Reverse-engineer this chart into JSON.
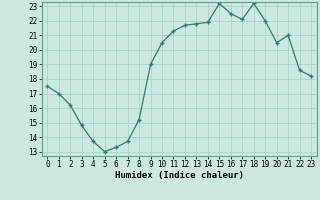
{
  "x": [
    0,
    1,
    2,
    3,
    4,
    5,
    6,
    7,
    8,
    9,
    10,
    11,
    12,
    13,
    14,
    15,
    16,
    17,
    18,
    19,
    20,
    21,
    22,
    23
  ],
  "y": [
    17.5,
    17.0,
    16.2,
    14.8,
    13.7,
    13.0,
    13.3,
    13.7,
    15.2,
    19.0,
    20.5,
    21.3,
    21.7,
    21.8,
    21.9,
    23.2,
    22.5,
    22.1,
    23.2,
    22.0,
    20.5,
    21.0,
    18.6,
    18.2
  ],
  "xlabel": "Humidex (Indice chaleur)",
  "ylim_min": 12.7,
  "ylim_max": 23.3,
  "xlim_min": -0.5,
  "xlim_max": 23.5,
  "yticks": [
    13,
    14,
    15,
    16,
    17,
    18,
    19,
    20,
    21,
    22,
    23
  ],
  "xticks": [
    0,
    1,
    2,
    3,
    4,
    5,
    6,
    7,
    8,
    9,
    10,
    11,
    12,
    13,
    14,
    15,
    16,
    17,
    18,
    19,
    20,
    21,
    22,
    23
  ],
  "line_color": "#2d7d6e",
  "marker_color": "#2d7d6e",
  "bg_color": "#cce8e0",
  "grid_color": "#a8cfc7",
  "tick_label_fontsize": 5.5,
  "xlabel_fontsize": 6.5
}
